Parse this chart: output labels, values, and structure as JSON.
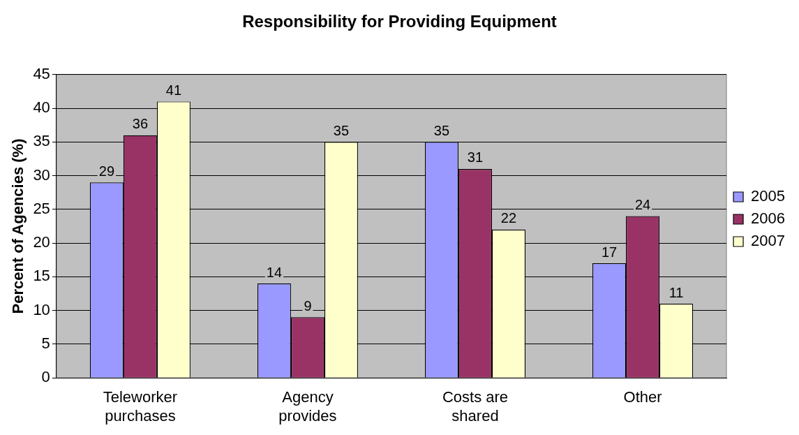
{
  "chart_data": {
    "type": "bar",
    "title": "Responsibility for Providing Equipment",
    "ylabel": "Percent of Agencies (%)",
    "categories": [
      "Teleworker purchases",
      "Agency provides",
      "Costs are shared",
      "Other"
    ],
    "series": [
      {
        "name": "2005",
        "color": "#9999ff",
        "values": [
          29,
          14,
          35,
          17
        ]
      },
      {
        "name": "2006",
        "color": "#993366",
        "values": [
          36,
          9,
          31,
          24
        ]
      },
      {
        "name": "2007",
        "color": "#ffffcc",
        "values": [
          41,
          35,
          22,
          11
        ]
      }
    ],
    "ylim": [
      0,
      45
    ],
    "yticks": [
      0,
      5,
      10,
      15,
      20,
      25,
      30,
      35,
      40,
      45
    ],
    "grid": "y",
    "legend": "right",
    "data_labels": true
  }
}
